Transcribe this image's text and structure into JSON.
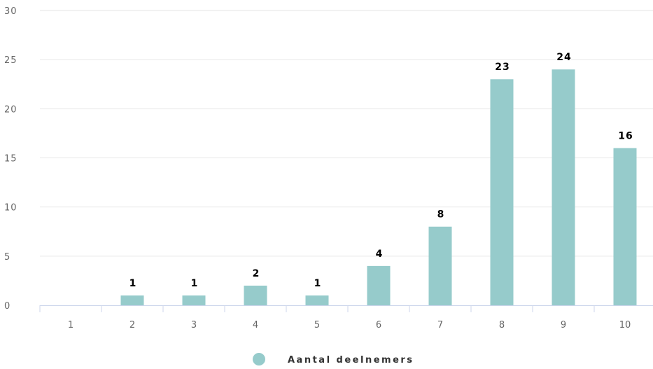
{
  "chart_data": {
    "type": "bar",
    "title": "",
    "xlabel": "",
    "ylabel": "",
    "categories": [
      "1",
      "2",
      "3",
      "4",
      "5",
      "6",
      "7",
      "8",
      "9",
      "10"
    ],
    "series": [
      {
        "name": "Aantal deelnemers",
        "values": [
          0,
          1,
          1,
          2,
          1,
          4,
          8,
          23,
          24,
          16
        ],
        "color": "#96CBCB"
      }
    ],
    "data_labels": [
      "",
      "1",
      "1",
      "2",
      "1",
      "4",
      "8",
      "23",
      "24",
      "16"
    ],
    "ylim": [
      0,
      30
    ],
    "yticks": [
      "0",
      "5",
      "10",
      "15",
      "20",
      "25",
      "30"
    ],
    "grid": true,
    "legend_position": "bottom-center",
    "colors": {
      "gridline": "#e6e6e6",
      "axis": "#ccd6eb"
    }
  }
}
